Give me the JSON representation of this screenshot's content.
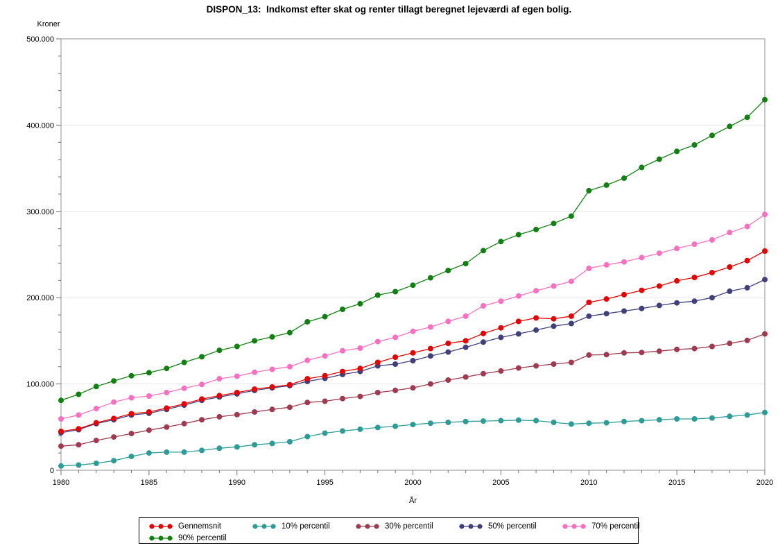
{
  "title": "DISPON_13:  Indkomst efter skat og renter tillagt beregnet lejeværdi af egen bolig.",
  "chart_data": {
    "type": "line",
    "title": "DISPON_13:  Indkomst efter skat og renter tillagt beregnet lejeværdi af egen bolig.",
    "xlabel": "År",
    "ylabel": "Kroner",
    "ylim": [
      0,
      500000
    ],
    "grid": "horizontal",
    "legend_position": "bottom",
    "marker": "circle",
    "y_major_ticks": [
      0,
      100000,
      200000,
      300000,
      400000,
      500000
    ],
    "y_tick_labels": [
      "0",
      "100.000",
      "200.000",
      "300.000",
      "400.000",
      "500.000"
    ],
    "y_minor_step": 20000,
    "x_major_ticks": [
      1980,
      1985,
      1990,
      1995,
      2000,
      2005,
      2010,
      2015,
      2020
    ],
    "x": [
      1980,
      1981,
      1982,
      1983,
      1984,
      1985,
      1986,
      1987,
      1988,
      1989,
      1990,
      1991,
      1992,
      1993,
      1994,
      1995,
      1996,
      1997,
      1998,
      1999,
      2000,
      2001,
      2002,
      2003,
      2004,
      2005,
      2006,
      2007,
      2008,
      2009,
      2010,
      2011,
      2012,
      2013,
      2014,
      2015,
      2016,
      2017,
      2018,
      2019,
      2020
    ],
    "series": [
      {
        "name": "Gennemsnit",
        "color": "#e60000",
        "values": [
          45000,
          48000,
          55000,
          60000,
          65500,
          67500,
          72000,
          77000,
          82500,
          86500,
          90000,
          94000,
          96500,
          99000,
          106000,
          109500,
          114500,
          118000,
          125000,
          131000,
          136000,
          141000,
          147000,
          150000,
          158500,
          165000,
          172500,
          176500,
          175500,
          178500,
          194500,
          198500,
          203500,
          208500,
          213500,
          219500,
          223500,
          229000,
          235500,
          243000,
          254000
        ]
      },
      {
        "name": "10% percentil",
        "color": "#2d9c96",
        "values": [
          5000,
          6000,
          8000,
          11000,
          16000,
          20000,
          21000,
          21000,
          23000,
          25500,
          27000,
          29500,
          31000,
          33000,
          39000,
          43000,
          45500,
          47500,
          49500,
          51000,
          53000,
          54500,
          55500,
          56500,
          57000,
          57500,
          58000,
          57500,
          55500,
          53500,
          54500,
          55000,
          56500,
          57500,
          58500,
          59500,
          59500,
          60500,
          62500,
          64000,
          67000
        ]
      },
      {
        "name": "30% percentil",
        "color": "#a03a50",
        "values": [
          28000,
          29500,
          34500,
          38500,
          42500,
          46500,
          50000,
          54000,
          58500,
          62000,
          64500,
          67500,
          70500,
          73000,
          78500,
          80000,
          83000,
          85500,
          90000,
          92500,
          95500,
          100000,
          104500,
          108000,
          112000,
          115000,
          118500,
          121000,
          123000,
          125000,
          133500,
          134000,
          136000,
          136500,
          138000,
          140000,
          141000,
          143500,
          147000,
          150500,
          158000
        ]
      },
      {
        "name": "50% percentil",
        "color": "#41407c",
        "values": [
          43500,
          47000,
          54000,
          58500,
          64000,
          66000,
          70500,
          75500,
          81000,
          85000,
          88500,
          92500,
          95500,
          98000,
          103000,
          106500,
          111000,
          114500,
          121000,
          123000,
          127000,
          132500,
          137000,
          142500,
          148500,
          154000,
          158000,
          162500,
          167000,
          170000,
          178500,
          181500,
          184500,
          187500,
          191000,
          194000,
          196000,
          200000,
          207500,
          211500,
          221000
        ]
      },
      {
        "name": "70% percentil",
        "color": "#fa70c0",
        "values": [
          59500,
          64000,
          71500,
          79000,
          84000,
          86000,
          90000,
          95000,
          99500,
          106000,
          109000,
          113500,
          117000,
          120000,
          127500,
          132500,
          138500,
          141500,
          149000,
          154000,
          161000,
          166000,
          172500,
          178500,
          190500,
          196000,
          202000,
          208000,
          213500,
          219000,
          234000,
          238000,
          241500,
          246500,
          251500,
          257000,
          262000,
          267000,
          275500,
          282500,
          296500
        ]
      },
      {
        "name": "90% percentil",
        "color": "#118011",
        "values": [
          81000,
          88000,
          97000,
          103500,
          109500,
          113000,
          118000,
          125000,
          131500,
          139000,
          143500,
          150000,
          154500,
          159500,
          172000,
          178000,
          186500,
          193000,
          203000,
          207000,
          214500,
          223000,
          231500,
          239500,
          254500,
          265000,
          273000,
          279000,
          286000,
          294500,
          324000,
          330500,
          338500,
          351000,
          360500,
          369500,
          377000,
          388000,
          398500,
          409000,
          429500
        ]
      }
    ],
    "style": {
      "grid_color": "#e6e6e6",
      "frame_color": "#909090",
      "tick_color": "#707070",
      "marker_radius": 4,
      "line_width": 1.3
    }
  }
}
